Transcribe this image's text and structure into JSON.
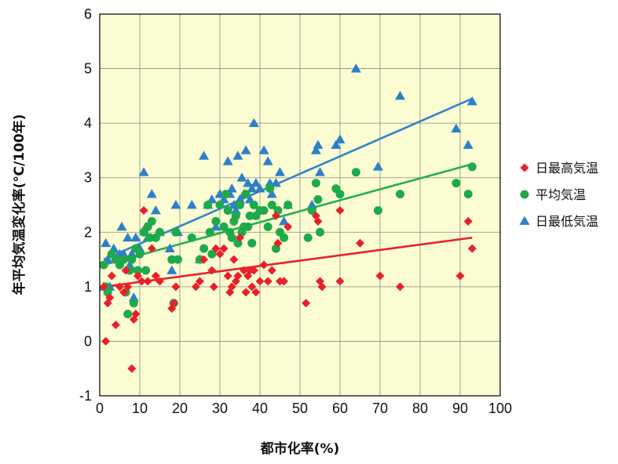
{
  "chart_data": {
    "type": "scatter",
    "xlabel": "都市化率(%)",
    "ylabel": "年平均気温変化率(℃/100年)",
    "xlim": [
      0,
      100
    ],
    "ylim": [
      -1,
      6
    ],
    "x_ticks": [
      0,
      10,
      20,
      30,
      40,
      50,
      60,
      70,
      80,
      90,
      100
    ],
    "y_ticks": [
      -1,
      0,
      1,
      2,
      3,
      4,
      5,
      6
    ],
    "grid": true,
    "legend_position": "right",
    "plot_background": "#fcfcd2",
    "series": [
      {
        "name": "日最高気温",
        "marker": "diamond",
        "color": "#e8202a",
        "trend": {
          "x": [
            1,
            93
          ],
          "y": [
            1.0,
            1.9
          ],
          "color": "#e8202a"
        },
        "points": [
          [
            1,
            1.0
          ],
          [
            1.5,
            0
          ],
          [
            2,
            0.7
          ],
          [
            2.5,
            0.8
          ],
          [
            3,
            1.2
          ],
          [
            4,
            0.3
          ],
          [
            5,
            1.0
          ],
          [
            6,
            0.9
          ],
          [
            6.5,
            1.3
          ],
          [
            7,
            1.0
          ],
          [
            8,
            -0.5
          ],
          [
            8.5,
            0.4
          ],
          [
            9,
            0.5
          ],
          [
            9.5,
            1.2
          ],
          [
            10.5,
            1.1
          ],
          [
            11,
            2.4
          ],
          [
            12,
            1.1
          ],
          [
            13,
            1.7
          ],
          [
            14,
            1.2
          ],
          [
            15,
            1.1
          ],
          [
            18,
            0.6
          ],
          [
            18.5,
            0.7
          ],
          [
            19,
            1.0
          ],
          [
            24,
            1.0
          ],
          [
            25,
            1.1
          ],
          [
            26,
            1.5
          ],
          [
            28,
            1.3
          ],
          [
            28.5,
            1.0
          ],
          [
            29,
            1.7
          ],
          [
            30,
            1.6
          ],
          [
            31,
            1.7
          ],
          [
            32,
            1.2
          ],
          [
            32.5,
            0.9
          ],
          [
            33,
            1.0
          ],
          [
            33.5,
            1.5
          ],
          [
            34,
            1.1
          ],
          [
            34.5,
            1.2
          ],
          [
            35,
            1.9
          ],
          [
            36,
            1.3
          ],
          [
            36.5,
            0.9
          ],
          [
            37,
            1.2
          ],
          [
            37.5,
            1.3
          ],
          [
            38,
            1.0
          ],
          [
            38.5,
            1.3
          ],
          [
            39,
            0.9
          ],
          [
            40,
            1.1
          ],
          [
            41,
            1.4
          ],
          [
            42,
            1.1
          ],
          [
            43,
            1.3
          ],
          [
            44,
            2.3
          ],
          [
            44.5,
            1.8
          ],
          [
            45,
            1.1
          ],
          [
            46,
            1.1
          ],
          [
            47,
            2.1
          ],
          [
            51.5,
            0.7
          ],
          [
            54,
            2.3
          ],
          [
            54.5,
            2.2
          ],
          [
            55,
            1.1
          ],
          [
            55.5,
            1.0
          ],
          [
            60,
            1.1
          ],
          [
            60,
            2.4
          ],
          [
            65,
            1.8
          ],
          [
            70,
            1.2
          ],
          [
            75,
            1.0
          ],
          [
            90,
            1.2
          ],
          [
            92,
            2.2
          ],
          [
            93,
            1.7
          ]
        ]
      },
      {
        "name": "平均気温",
        "marker": "circle",
        "color": "#1faa4a",
        "trend": {
          "x": [
            1,
            93
          ],
          "y": [
            1.4,
            3.25
          ],
          "color": "#22b14c"
        },
        "points": [
          [
            1,
            1.4
          ],
          [
            1.5,
            1.0
          ],
          [
            2,
            0.9
          ],
          [
            3,
            1.6
          ],
          [
            4,
            1.5
          ],
          [
            5,
            1.4
          ],
          [
            6,
            1.5
          ],
          [
            6.5,
            0.9
          ],
          [
            7,
            0.5
          ],
          [
            7.5,
            1.3
          ],
          [
            8,
            1.5
          ],
          [
            8.5,
            0.7
          ],
          [
            9,
            1.7
          ],
          [
            9.5,
            1.3
          ],
          [
            10,
            1.6
          ],
          [
            11,
            2.0
          ],
          [
            11.5,
            1.3
          ],
          [
            12,
            2.1
          ],
          [
            12.5,
            1.9
          ],
          [
            13,
            2.2
          ],
          [
            14,
            1.9
          ],
          [
            15,
            2.0
          ],
          [
            18,
            1.5
          ],
          [
            18.5,
            0.7
          ],
          [
            19,
            2.0
          ],
          [
            19.5,
            1.5
          ],
          [
            23,
            1.9
          ],
          [
            25,
            1.5
          ],
          [
            26,
            1.7
          ],
          [
            27,
            2.5
          ],
          [
            27.5,
            2.0
          ],
          [
            28,
            1.6
          ],
          [
            29,
            2.2
          ],
          [
            30,
            2.5
          ],
          [
            31,
            2.1
          ],
          [
            31.5,
            2.7
          ],
          [
            32,
            2.4
          ],
          [
            32.5,
            2.0
          ],
          [
            33,
            1.9
          ],
          [
            33.5,
            2.2
          ],
          [
            34,
            2.3
          ],
          [
            34.5,
            1.8
          ],
          [
            35,
            2.5
          ],
          [
            35.5,
            2.0
          ],
          [
            36,
            2.1
          ],
          [
            36.5,
            2.7
          ],
          [
            37,
            2.1
          ],
          [
            37.5,
            2.3
          ],
          [
            38,
            1.8
          ],
          [
            38.5,
            2.5
          ],
          [
            39,
            2.3
          ],
          [
            40,
            2.4
          ],
          [
            41,
            2.4
          ],
          [
            42,
            2.1
          ],
          [
            42.5,
            2.8
          ],
          [
            43,
            2.5
          ],
          [
            44,
            1.7
          ],
          [
            44.5,
            2.4
          ],
          [
            45,
            2.0
          ],
          [
            46,
            1.9
          ],
          [
            47,
            2.5
          ],
          [
            52,
            1.9
          ],
          [
            53,
            2.4
          ],
          [
            54,
            2.9
          ],
          [
            54.5,
            2.6
          ],
          [
            55,
            2.0
          ],
          [
            59,
            2.8
          ],
          [
            60,
            2.7
          ],
          [
            64,
            3.1
          ],
          [
            69.5,
            2.4
          ],
          [
            75,
            2.7
          ],
          [
            89,
            2.9
          ],
          [
            92,
            2.7
          ],
          [
            93,
            3.2
          ]
        ]
      },
      {
        "name": "日最低気温",
        "marker": "triangle",
        "color": "#2e7fc9",
        "trend": {
          "x": [
            1,
            93
          ],
          "y": [
            1.5,
            4.45
          ],
          "color": "#2e86c8"
        },
        "points": [
          [
            1,
            1.0
          ],
          [
            1.5,
            1.8
          ],
          [
            2,
            1.5
          ],
          [
            2.5,
            1.0
          ],
          [
            3,
            1.6
          ],
          [
            3.5,
            1.7
          ],
          [
            4,
            1.5
          ],
          [
            5,
            1.6
          ],
          [
            5.5,
            2.1
          ],
          [
            6,
            1.6
          ],
          [
            7,
            1.9
          ],
          [
            7.5,
            1.4
          ],
          [
            8,
            1.6
          ],
          [
            8.5,
            0.8
          ],
          [
            9,
            1.9
          ],
          [
            10,
            1.7
          ],
          [
            11,
            3.1
          ],
          [
            11.5,
            2.1
          ],
          [
            12,
            1.9
          ],
          [
            13,
            2.7
          ],
          [
            14,
            2.4
          ],
          [
            15,
            2.0
          ],
          [
            17.5,
            1.7
          ],
          [
            18,
            1.3
          ],
          [
            19,
            2.5
          ],
          [
            19.5,
            2.0
          ],
          [
            23,
            2.5
          ],
          [
            25,
            1.5
          ],
          [
            26,
            3.4
          ],
          [
            27,
            2.5
          ],
          [
            28,
            2.6
          ],
          [
            29,
            2.1
          ],
          [
            30,
            2.7
          ],
          [
            31,
            2.6
          ],
          [
            32,
            3.3
          ],
          [
            32.5,
            2.7
          ],
          [
            33,
            2.8
          ],
          [
            33.5,
            2.5
          ],
          [
            34,
            2.4
          ],
          [
            34.5,
            3.4
          ],
          [
            35,
            2.6
          ],
          [
            35.5,
            3.0
          ],
          [
            36,
            2.7
          ],
          [
            36.5,
            3.5
          ],
          [
            37,
            2.9
          ],
          [
            37.5,
            2.6
          ],
          [
            38,
            2.8
          ],
          [
            38.5,
            4.0
          ],
          [
            39,
            2.9
          ],
          [
            40,
            2.8
          ],
          [
            41,
            3.5
          ],
          [
            42,
            3.3
          ],
          [
            42.5,
            2.9
          ],
          [
            43,
            2.7
          ],
          [
            44,
            2.9
          ],
          [
            45,
            3.1
          ],
          [
            46,
            2.2
          ],
          [
            47,
            2.5
          ],
          [
            53,
            2.5
          ],
          [
            54,
            3.5
          ],
          [
            54.5,
            3.6
          ],
          [
            55,
            3.1
          ],
          [
            59,
            3.6
          ],
          [
            60,
            3.7
          ],
          [
            64,
            5.0
          ],
          [
            69.5,
            3.2
          ],
          [
            75,
            4.5
          ],
          [
            89,
            3.9
          ],
          [
            92,
            3.6
          ],
          [
            93,
            4.4
          ]
        ]
      }
    ]
  }
}
